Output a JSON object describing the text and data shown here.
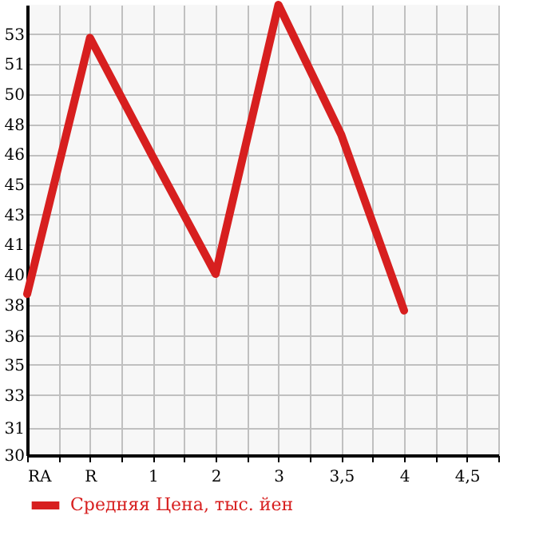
{
  "chart_data": {
    "type": "line",
    "categories": [
      "RA",
      "R",
      "1",
      "2",
      "3",
      "3,5",
      "4",
      "4,5"
    ],
    "series": [
      {
        "name": "Средняя Цена, тыс. йен",
        "color": "#d71f1f",
        "values": [
          38.8,
          52.8,
          46.3,
          39.9,
          54.6,
          47.5,
          37.9,
          null
        ]
      }
    ],
    "ylim": [
      30,
      54.6
    ],
    "yticks": [
      30,
      {
        "value": 31.5,
        "label": "31"
      },
      {
        "value": 33.29,
        "label": "33"
      },
      {
        "value": 34.93,
        "label": "35"
      },
      {
        "value": 36.5,
        "label": "36"
      },
      {
        "value": 38.21,
        "label": "38"
      },
      {
        "value": 39.86,
        "label": "40"
      },
      {
        "value": 41.5,
        "label": "41"
      },
      {
        "value": 43.14,
        "label": "43"
      },
      {
        "value": 44.79,
        "label": "45"
      },
      {
        "value": 46.43,
        "label": "46"
      },
      {
        "value": 48.07,
        "label": "48"
      },
      {
        "value": 49.71,
        "label": "50"
      },
      {
        "value": 51.36,
        "label": "51"
      },
      53
    ],
    "grid": true,
    "legend": "bottom",
    "marker": "none",
    "line_style": "solid"
  }
}
